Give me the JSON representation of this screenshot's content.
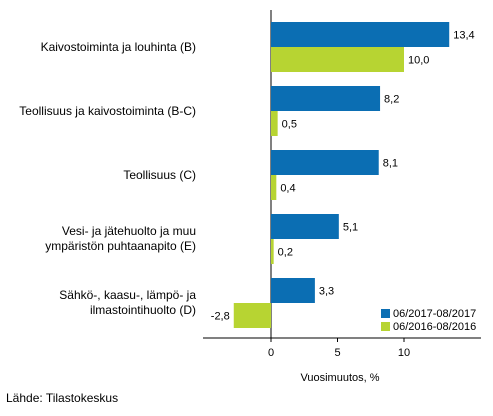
{
  "chart_data": {
    "type": "bar",
    "orientation": "horizontal",
    "categories": [
      "Kaivostoiminta ja louhinta (B)",
      "Teollisuus ja kaivostoiminta (B-C)",
      "Teollisuus (C)",
      "Vesi- ja jätehuolto ja muu\nympäristön puhtaanapito (E)",
      "Sähkö-, kaasu-, lämpö- ja\nilmastointihuolto (D)"
    ],
    "series": [
      {
        "name": "06/2017-08/2017",
        "color": "#0b6eb3",
        "values": [
          13.4,
          8.2,
          8.1,
          5.1,
          3.3
        ],
        "labels": [
          "13,4",
          "8,2",
          "8,1",
          "5,1",
          "3,3"
        ]
      },
      {
        "name": "06/2016-08/2016",
        "color": "#b7d432",
        "values": [
          10.0,
          0.5,
          0.4,
          0.2,
          -2.8
        ],
        "labels": [
          "10,0",
          "0,5",
          "0,4",
          "0,2",
          "-2,8"
        ]
      }
    ],
    "xlabel": "Vuosimuutos, %",
    "xlim": [
      -5,
      15
    ],
    "xticks": [
      0,
      5,
      10
    ],
    "xtick_labels": [
      "0",
      "5",
      "10"
    ],
    "legend": "bottom-right"
  },
  "source": "Lähde: Tilastokeskus"
}
